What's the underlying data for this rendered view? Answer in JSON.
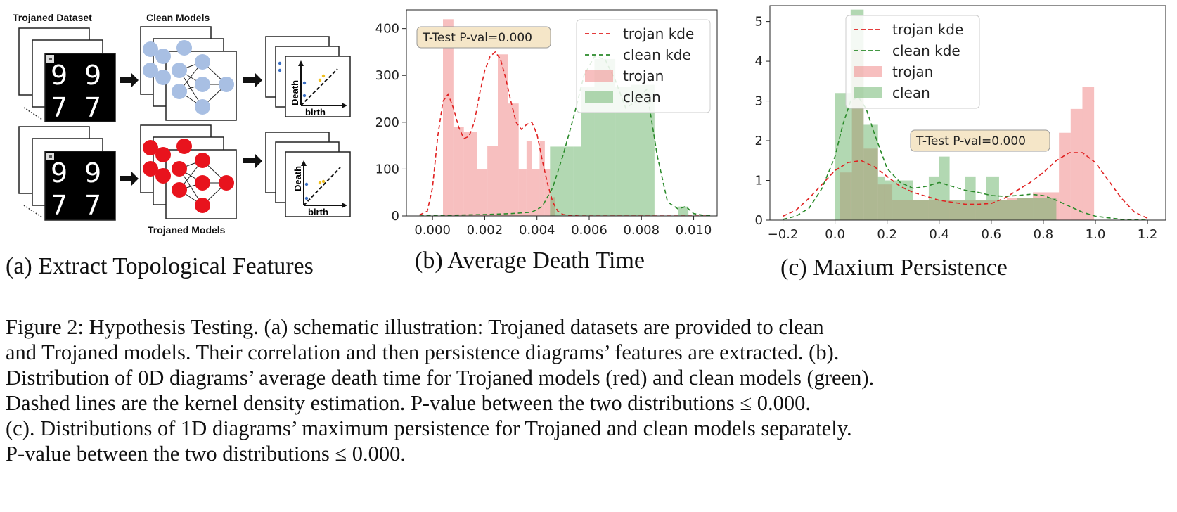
{
  "panel_a": {
    "dataset_label": "Trojaned Dataset",
    "clean_models_label": "Clean Models",
    "trojaned_models_label": "Trojaned Models",
    "axis_death": "Death",
    "axis_birth": "birth",
    "digits": [
      "9",
      "9",
      "7",
      "7"
    ],
    "colors": {
      "clean_node": "#a8bfe3",
      "trojan_node": "#e8131d"
    },
    "icons": [
      "arrow-right-icon",
      "persistence-diagram-icon",
      "neural-network-icon",
      "mnist-digit-grid-icon"
    ]
  },
  "chart_data": [
    {
      "type": "bar",
      "panel": "(b)",
      "xlim": [
        -0.001,
        0.0109
      ],
      "ylim": [
        0,
        440
      ],
      "xticks": [
        "0.000",
        "0.002",
        "0.004",
        "0.006",
        "0.008",
        "0.010"
      ],
      "xtick_values": [
        0.0,
        0.002,
        0.004,
        0.006,
        0.008,
        0.01
      ],
      "yticks": [
        "0",
        "100",
        "200",
        "300",
        "400"
      ],
      "ytick_values": [
        0,
        100,
        200,
        300,
        400
      ],
      "legend_position": "top-right",
      "legend": [
        "trojan kde",
        "clean kde",
        "trojan",
        "clean"
      ],
      "annotation": "T-Test P-val=0.000",
      "colors": {
        "trojan": "#f08080",
        "clean": "#66b266",
        "trojan_kde": "#e02020",
        "clean_kde": "#2a8a2a"
      },
      "series": [
        {
          "name": "trojan",
          "kind": "histogram",
          "bins": [
            [
              0.0004,
              0.0008,
              420
            ],
            [
              0.0008,
              0.0012,
              190
            ],
            [
              0.0012,
              0.0017,
              180
            ],
            [
              0.0017,
              0.0021,
              100
            ],
            [
              0.0021,
              0.0025,
              150
            ],
            [
              0.0025,
              0.0029,
              345
            ],
            [
              0.0029,
              0.0033,
              240
            ],
            [
              0.0033,
              0.0036,
              100
            ],
            [
              0.0036,
              0.0038,
              160
            ],
            [
              0.0038,
              0.0041,
              100
            ],
            [
              0.0041,
              0.0043,
              160
            ],
            [
              0.0043,
              0.0045,
              100
            ],
            [
              0.0045,
              0.0047,
              40
            ]
          ]
        },
        {
          "name": "clean",
          "kind": "histogram",
          "bins": [
            [
              0.0045,
              0.0054,
              148
            ],
            [
              0.0054,
              0.0057,
              148
            ],
            [
              0.0057,
              0.0062,
              275
            ],
            [
              0.0062,
              0.007,
              335
            ],
            [
              0.007,
              0.0076,
              275
            ],
            [
              0.0076,
              0.0085,
              280
            ],
            [
              0.0094,
              0.0098,
              20
            ]
          ]
        },
        {
          "name": "trojan kde",
          "kind": "line",
          "x": [
            -0.0005,
            -0.0002,
            0.0,
            0.0002,
            0.0004,
            0.0006,
            0.0008,
            0.001,
            0.0012,
            0.0014,
            0.0016,
            0.0018,
            0.002,
            0.0022,
            0.0024,
            0.0026,
            0.0028,
            0.003,
            0.0032,
            0.0034,
            0.0036,
            0.0038,
            0.004,
            0.0042,
            0.0044,
            0.0046,
            0.0048,
            0.005,
            0.0053,
            0.0056,
            0.006,
            0.007,
            0.008,
            0.009,
            0.01,
            0.0105
          ],
          "y": [
            2,
            10,
            60,
            170,
            245,
            260,
            230,
            190,
            165,
            170,
            200,
            260,
            310,
            340,
            350,
            335,
            295,
            245,
            200,
            185,
            195,
            200,
            175,
            120,
            70,
            30,
            10,
            3,
            1,
            0,
            0,
            0,
            0,
            0,
            0,
            0
          ]
        },
        {
          "name": "clean kde",
          "kind": "line",
          "x": [
            -0.0005,
            0.0,
            0.001,
            0.002,
            0.003,
            0.0038,
            0.0042,
            0.0046,
            0.005,
            0.0054,
            0.0058,
            0.0062,
            0.0066,
            0.007,
            0.0074,
            0.0078,
            0.0082,
            0.0086,
            0.009,
            0.0094,
            0.0097,
            0.01,
            0.0104,
            0.0107
          ],
          "y": [
            0,
            1,
            2,
            3,
            5,
            8,
            20,
            60,
            130,
            210,
            300,
            340,
            335,
            290,
            230,
            245,
            270,
            130,
            30,
            15,
            20,
            5,
            1,
            0
          ]
        }
      ]
    },
    {
      "type": "bar",
      "panel": "(c)",
      "xlim": [
        -0.25,
        1.27
      ],
      "ylim": [
        0,
        5.4
      ],
      "xticks": [
        "−0.2",
        "0.0",
        "0.2",
        "0.4",
        "0.6",
        "0.8",
        "1.0",
        "1.2"
      ],
      "xtick_values": [
        -0.2,
        0.0,
        0.2,
        0.4,
        0.6,
        0.8,
        1.0,
        1.2
      ],
      "yticks": [
        "0",
        "1",
        "2",
        "3",
        "4",
        "5"
      ],
      "ytick_values": [
        0,
        1,
        2,
        3,
        4,
        5
      ],
      "legend_position": "top-center",
      "legend": [
        "trojan kde",
        "clean kde",
        "trojan",
        "clean"
      ],
      "annotation": "T-Test P-val=0.000",
      "colors": {
        "trojan": "#f08080",
        "clean": "#66b266",
        "trojan_kde": "#e02020",
        "clean_kde": "#2a8a2a"
      },
      "series": [
        {
          "name": "trojan",
          "kind": "histogram",
          "bins": [
            [
              0.02,
              0.065,
              1.2
            ],
            [
              0.065,
              0.11,
              4.3
            ],
            [
              0.11,
              0.165,
              1.8
            ],
            [
              0.165,
              0.22,
              0.9
            ],
            [
              0.22,
              0.66,
              0.5
            ],
            [
              0.66,
              0.76,
              0.55
            ],
            [
              0.76,
              0.86,
              0.7
            ],
            [
              0.86,
              0.905,
              2.2
            ],
            [
              0.905,
              0.95,
              2.8
            ],
            [
              0.95,
              0.995,
              3.35
            ]
          ]
        },
        {
          "name": "clean",
          "kind": "histogram",
          "bins": [
            [
              0.0,
              0.06,
              3.2
            ],
            [
              0.06,
              0.11,
              5.3
            ],
            [
              0.11,
              0.165,
              2.4
            ],
            [
              0.165,
              0.19,
              1.1
            ],
            [
              0.19,
              0.3,
              1.0
            ],
            [
              0.3,
              0.36,
              0.5
            ],
            [
              0.36,
              0.4,
              1.1
            ],
            [
              0.4,
              0.44,
              1.6
            ],
            [
              0.44,
              0.5,
              0.5
            ],
            [
              0.5,
              0.54,
              1.1
            ],
            [
              0.54,
              0.58,
              0.5
            ],
            [
              0.58,
              0.63,
              1.1
            ],
            [
              0.63,
              0.7,
              0.5
            ],
            [
              0.7,
              0.85,
              0.55
            ]
          ]
        },
        {
          "name": "trojan kde",
          "kind": "line",
          "x": [
            -0.2,
            -0.15,
            -0.1,
            -0.05,
            0.0,
            0.05,
            0.1,
            0.15,
            0.2,
            0.25,
            0.3,
            0.35,
            0.4,
            0.45,
            0.5,
            0.55,
            0.6,
            0.65,
            0.7,
            0.75,
            0.8,
            0.85,
            0.9,
            0.95,
            1.0,
            1.05,
            1.1,
            1.15,
            1.2
          ],
          "y": [
            0.1,
            0.25,
            0.55,
            0.9,
            1.25,
            1.45,
            1.5,
            1.35,
            1.1,
            0.85,
            0.7,
            0.6,
            0.5,
            0.45,
            0.4,
            0.4,
            0.42,
            0.55,
            0.75,
            0.95,
            1.2,
            1.5,
            1.7,
            1.7,
            1.45,
            1.0,
            0.55,
            0.2,
            0.05
          ]
        },
        {
          "name": "clean kde",
          "kind": "line",
          "x": [
            -0.2,
            -0.15,
            -0.1,
            -0.05,
            0.0,
            0.03,
            0.06,
            0.09,
            0.12,
            0.15,
            0.2,
            0.25,
            0.3,
            0.35,
            0.4,
            0.45,
            0.5,
            0.55,
            0.6,
            0.65,
            0.7,
            0.75,
            0.8,
            0.85,
            0.9,
            0.95,
            1.0,
            1.1,
            1.2
          ],
          "y": [
            0.02,
            0.1,
            0.3,
            0.8,
            1.6,
            2.4,
            3.0,
            3.1,
            2.8,
            2.2,
            1.3,
            0.95,
            0.8,
            0.85,
            0.95,
            0.85,
            0.75,
            0.7,
            0.62,
            0.6,
            0.62,
            0.65,
            0.62,
            0.5,
            0.35,
            0.2,
            0.1,
            0.02,
            0.0
          ]
        }
      ]
    }
  ],
  "sub_captions": {
    "a": "(a) Extract Topological Features",
    "b": "(b) Average Death Time",
    "c": "(c) Maxium Persistence"
  },
  "caption_lines": [
    "Figure 2: Hypothesis Testing. (a) schematic illustration: Trojaned datasets are provided to clean",
    "and Trojaned models. Their correlation and then persistence diagrams’ features are extracted. (b).",
    "Distribution of 0D diagrams’ average death time for Trojaned models (red) and clean models (green).",
    "Dashed lines are the kernel density estimation.  P-value between the two distributions ≤ 0.000.",
    "(c). Distributions of 1D diagrams’ maximum persistence for Trojaned and clean models separately.",
    "P-value between the two distributions ≤ 0.000."
  ]
}
